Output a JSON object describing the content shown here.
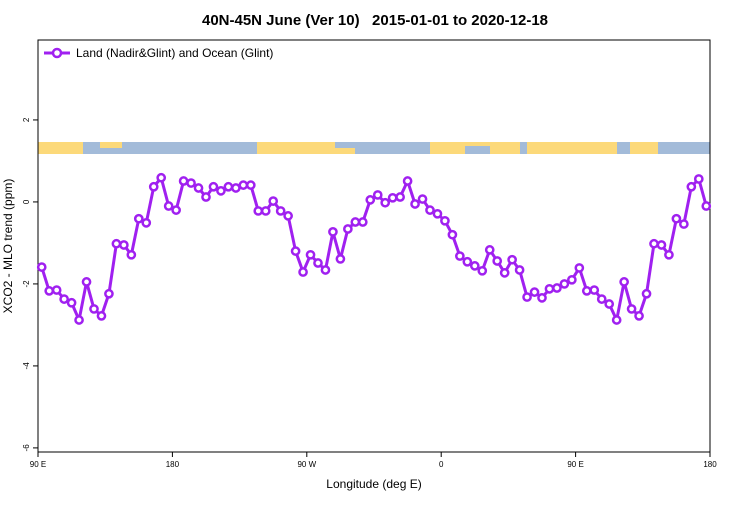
{
  "chart_data": {
    "type": "line",
    "title": "40N-45N June (Ver 10)   2015-01-01 to 2020-12-18",
    "xlabel": "Longitude (deg E)",
    "ylabel": "XCO2 - MLO trend (ppm)",
    "xlim": [
      90,
      540
    ],
    "ylim": [
      -6.1,
      3.95
    ],
    "xticks": [
      {
        "value": 90,
        "label": "90 E"
      },
      180,
      {
        "value": 270,
        "label": "90 W"
      },
      {
        "value": 360,
        "label": "0"
      },
      {
        "value": 450,
        "label": "90 E"
      },
      {
        "value": 540,
        "label": "180"
      }
    ],
    "yticks": [
      -6,
      -4,
      -2,
      0,
      2
    ],
    "legend": "top-left",
    "x": [
      92.5,
      97.5,
      102.5,
      107.5,
      112.5,
      117.5,
      122.5,
      127.5,
      132.5,
      137.5,
      142.5,
      147.5,
      152.5,
      157.5,
      162.5,
      167.5,
      172.5,
      177.5,
      182.5,
      187.5,
      192.5,
      197.5,
      202.5,
      207.5,
      212.5,
      217.5,
      222.5,
      227.5,
      232.5,
      237.5,
      242.5,
      247.5,
      252.5,
      257.5,
      262.5,
      267.5,
      272.5,
      277.5,
      282.5,
      287.5,
      292.5,
      297.5,
      302.5,
      307.5,
      312.5,
      317.5,
      322.5,
      327.5,
      332.5,
      337.5,
      342.5,
      347.5,
      352.5,
      357.5,
      362.5,
      367.5,
      372.5,
      377.5,
      382.5,
      387.5,
      392.5,
      397.5,
      402.5,
      407.5,
      412.5,
      417.5,
      422.5,
      427.5,
      432.5,
      437.5,
      442.5,
      447.5,
      452.5,
      457.5,
      462.5,
      467.5,
      472.5,
      477.5,
      482.5,
      487.5,
      492.5,
      497.5,
      502.5,
      507.5,
      512.5,
      517.5,
      522.5,
      527.5,
      532.5,
      537.5
    ],
    "series": [
      {
        "name": "Land (Nadir&Glint) and Ocean (Glint)",
        "color": "#a020f0",
        "values": [
          -1.59,
          -2.17,
          -2.15,
          -2.37,
          -2.46,
          -2.88,
          -1.95,
          -2.61,
          -2.78,
          -2.24,
          -1.02,
          -1.05,
          -1.29,
          -0.41,
          -0.51,
          0.37,
          0.59,
          -0.1,
          -0.2,
          0.51,
          0.46,
          0.34,
          0.12,
          0.37,
          0.27,
          0.37,
          0.34,
          0.41,
          0.41,
          -0.22,
          -0.22,
          0.02,
          -0.22,
          -0.34,
          -1.2,
          -1.71,
          -1.29,
          -1.49,
          -1.66,
          -0.73,
          -1.39,
          -0.66,
          -0.49,
          -0.49,
          0.05,
          0.17,
          -0.02,
          0.1,
          0.12,
          0.51,
          -0.05,
          0.07,
          -0.2,
          -0.29,
          -0.46,
          -0.8,
          -1.32,
          -1.46,
          -1.56,
          -1.68,
          -1.17,
          -1.44,
          -1.73,
          -1.41,
          -1.66,
          -2.32,
          -2.2,
          -2.34,
          -2.12,
          -2.1,
          -2.0,
          -1.9,
          -1.61,
          -2.17,
          -2.15,
          -2.37,
          -2.49,
          -2.88,
          -1.95,
          -2.61,
          -2.78,
          -2.24,
          -1.02,
          -1.05,
          -1.29,
          -0.41,
          -0.54,
          0.37,
          0.56,
          -0.1
        ]
      }
    ]
  }
}
